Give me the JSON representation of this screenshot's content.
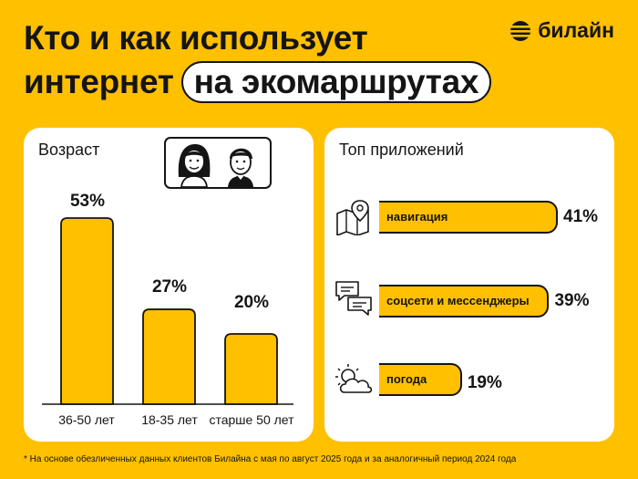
{
  "header": {
    "title_line1": "Кто и как использует",
    "title_line2": "интернет",
    "title_highlight": "на экомаршрутах",
    "brand": "билайн"
  },
  "colors": {
    "background": "#FFC000",
    "bar": "#FFC000",
    "card": "#FFFFFF",
    "ink": "#151515"
  },
  "chart_data": [
    {
      "type": "bar",
      "title": "Возраст",
      "categories": [
        "36-50 лет",
        "18-35 лет",
        "старше 50 лет"
      ],
      "values": [
        53,
        27,
        20
      ],
      "value_labels": [
        "53%",
        "27%",
        "20%"
      ],
      "unit": "%",
      "ylim": [
        0,
        53
      ],
      "grid": false
    },
    {
      "type": "bar",
      "orientation": "horizontal",
      "title": "Топ приложений",
      "categories": [
        "навигация",
        "соцсети и мессенджеры",
        "погода"
      ],
      "values": [
        41,
        39,
        19
      ],
      "value_labels": [
        "41%",
        "39%",
        "19%"
      ],
      "icons": [
        "map-pin-icon",
        "chat-bubbles-icon",
        "weather-icon"
      ],
      "unit": "%",
      "xlim": [
        0,
        41
      ],
      "grid": false
    }
  ],
  "footnote": "* На основе обезличенных данных клиентов Билайна с мая по август 2025 года и за аналогичный период 2024 года"
}
